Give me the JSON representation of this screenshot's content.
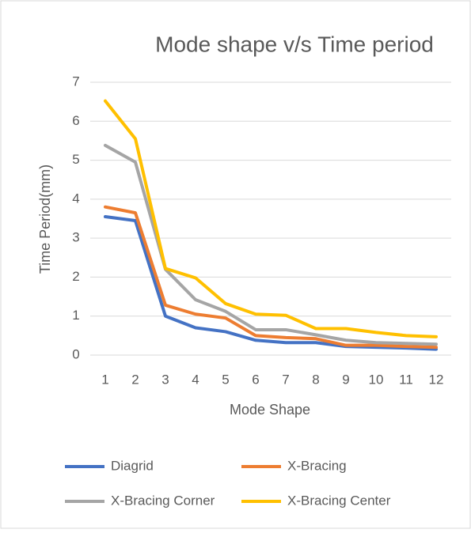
{
  "chart_data": {
    "type": "line",
    "title": "Mode shape v/s Time period",
    "x_label": "Mode Shape",
    "y_label": "Time Period(mm)",
    "categories": [
      "1",
      "2",
      "3",
      "4",
      "5",
      "6",
      "7",
      "8",
      "9",
      "10",
      "11",
      "12"
    ],
    "series": [
      {
        "name": "Diagrid",
        "color": "#4472c4",
        "values": [
          3.55,
          3.45,
          1.0,
          0.7,
          0.6,
          0.38,
          0.32,
          0.32,
          0.22,
          0.2,
          0.18,
          0.15
        ]
      },
      {
        "name": "X-Bracing",
        "color": "#ed7d31",
        "values": [
          3.8,
          3.65,
          1.28,
          1.05,
          0.95,
          0.5,
          0.45,
          0.42,
          0.25,
          0.25,
          0.22,
          0.2
        ]
      },
      {
        "name": "X-Bracing Corner",
        "color": "#a5a5a5",
        "values": [
          5.38,
          4.95,
          2.2,
          1.42,
          1.12,
          0.65,
          0.65,
          0.52,
          0.38,
          0.32,
          0.3,
          0.28
        ]
      },
      {
        "name": "X-Bracing Center",
        "color": "#ffc000",
        "values": [
          6.52,
          5.55,
          2.22,
          1.98,
          1.32,
          1.05,
          1.02,
          0.68,
          0.68,
          0.58,
          0.5,
          0.47
        ]
      }
    ],
    "ylim": [
      0,
      7
    ],
    "yticks": [
      0,
      1,
      2,
      3,
      4,
      5,
      6,
      7
    ],
    "grid": true,
    "legend": "bottom"
  }
}
